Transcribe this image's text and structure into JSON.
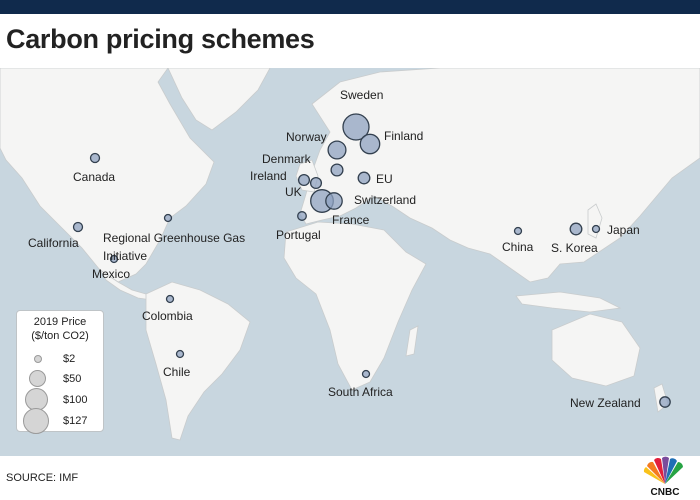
{
  "title": "Carbon pricing schemes",
  "source": "SOURCE: IMF",
  "brand": {
    "name": "CNBC",
    "logo": "cnbc-peacock-logo"
  },
  "colors": {
    "bar": "#102a4c",
    "water": "#c8d6df",
    "land": "#f5f5f4",
    "bubble": "#8fa2c0",
    "bubble_stroke": "#33404f"
  },
  "legend": {
    "title_line1": "2019 Price",
    "title_line2": "($/ton CO2)",
    "items": [
      {
        "label": "$2",
        "value": 2
      },
      {
        "label": "$50",
        "value": 50
      },
      {
        "label": "$100",
        "value": 100
      },
      {
        "label": "$127",
        "value": 127
      }
    ]
  },
  "locations": [
    {
      "name": "Sweden",
      "price": 127
    },
    {
      "name": "Finland",
      "price": 70
    },
    {
      "name": "Norway",
      "price": 59
    },
    {
      "name": "Denmark",
      "price": 26
    },
    {
      "name": "Ireland",
      "price": 22
    },
    {
      "name": "UK",
      "price": 22
    },
    {
      "name": "EU",
      "price": 25
    },
    {
      "name": "Switzerland",
      "price": 96
    },
    {
      "name": "France",
      "price": 50
    },
    {
      "name": "Portugal",
      "price": 14
    },
    {
      "name": "Canada",
      "price": 15
    },
    {
      "name": "California",
      "price": 15
    },
    {
      "name": "Regional Greenhouse Gas Initiative",
      "price": 5
    },
    {
      "name": "Mexico",
      "price": 2
    },
    {
      "name": "Colombia",
      "price": 5
    },
    {
      "name": "Chile",
      "price": 5
    },
    {
      "name": "South Africa",
      "price": 8
    },
    {
      "name": "China",
      "price": 2
    },
    {
      "name": "S. Korea",
      "price": 25
    },
    {
      "name": "Japan",
      "price": 3
    },
    {
      "name": "New Zealand",
      "price": 20
    }
  ]
}
